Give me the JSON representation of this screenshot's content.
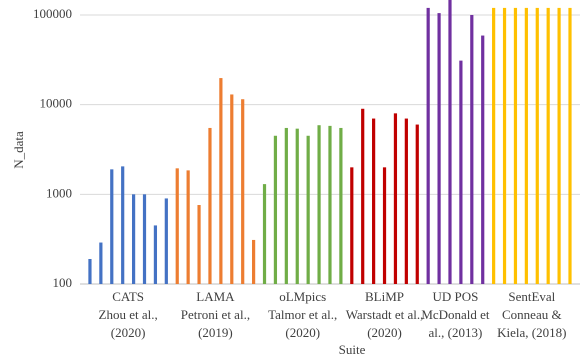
{
  "chart_data": {
    "type": "grouped-bar",
    "x_label": "Suite",
    "y_label": "N_data",
    "log_y": true,
    "grid": true,
    "ylim": [
      100,
      147000
    ],
    "yticks": [
      100,
      1000,
      10000,
      100000
    ],
    "groups": [
      {
        "label": [
          "CATS",
          "Zhou et al.,",
          "(2020)"
        ],
        "color": "#4472c4",
        "values": [
          190,
          290,
          1900,
          2050,
          1000,
          1000,
          450,
          900
        ]
      },
      {
        "label": [
          "LAMA",
          "Petroni et al.,",
          "(2019)"
        ],
        "color": "#ed7d31",
        "values": [
          1950,
          1850,
          760,
          5500,
          19800,
          13000,
          11500,
          310
        ]
      },
      {
        "label": [
          "oLMpics",
          "Talmor et al.,",
          "(2020)"
        ],
        "color": "#70ad47",
        "values": [
          1300,
          4500,
          5500,
          5400,
          4500,
          5900,
          5800,
          5500
        ]
      },
      {
        "label": [
          "BLiMP",
          "Warstadt et al.,",
          "(2020)"
        ],
        "color": "#c00000",
        "values": [
          2000,
          9000,
          7000,
          2000,
          8000,
          7000,
          6000
        ]
      },
      {
        "label": [
          "UD POS",
          "McDonald et",
          "al., (2013)"
        ],
        "color": "#7030a0",
        "values": [
          120000,
          105000,
          150000,
          31000,
          100000,
          59000
        ]
      },
      {
        "label": [
          "SentEval",
          "Conneau &",
          "Kiela, (2018)"
        ],
        "color": "#ffc000",
        "values": [
          120000,
          120000,
          120000,
          120000,
          120000,
          120000,
          120000,
          120000
        ]
      }
    ]
  }
}
